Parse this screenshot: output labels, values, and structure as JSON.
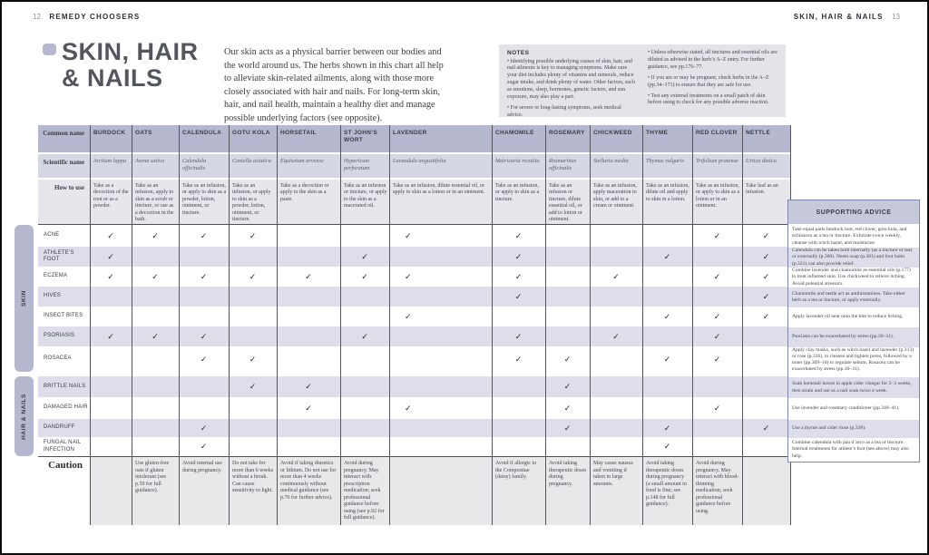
{
  "page": {
    "left_page_number": "12",
    "left_header": "REMEDY CHOOSERS",
    "right_header": "SKIN, HAIR & NAILS",
    "right_page_number": "13"
  },
  "title": {
    "line1": "SKIN, HAIR",
    "line2": "& NAILS"
  },
  "intro": "Our skin acts as a physical barrier between our bodies and the world around us. The herbs shown in this chart all help to alleviate skin-related ailments, along with those more closely associated with hair and nails. For long-term skin, hair, and nail health, maintain a healthy diet and manage possible underlying factors (see opposite).",
  "notes": {
    "heading": "NOTES",
    "col1": [
      "Identifying possible underlying causes of skin, hair, and nail ailments is key to managing symptoms. Make sure your diet includes plenty of vitamins and minerals, reduce sugar intake, and drink plenty of water. Other factors, such as emotions, sleep, hormones, genetic factors, and sun exposure, may also play a part.",
      "For severe or long-lasting symptoms, seek medical advice."
    ],
    "col2": [
      "Unless otherwise stated, all tinctures and essential oils are diluted as advised in the herb’s A–Z entry. For further guidance, see pp.176–77.",
      "If you are or may be pregnant, check herbs in the A–Z (pp.34–171) to ensure that they are safe for use.",
      "Test any external treatments on a small patch of skin before using to check for any possible adverse reaction."
    ]
  },
  "advice_panel": {
    "heading": "SUPPORTING ADVICE"
  },
  "table": {
    "row_labels": {
      "common": "Common name",
      "scientific": "Scientific name",
      "how_to_use": "How to use",
      "caution": "Caution"
    },
    "herbs": [
      {
        "id": "burdock",
        "name": "BURDOCK",
        "scientific": "Arctium lappa",
        "how_to_use": "Take as a decoction of the root or as a powder.",
        "caution": ""
      },
      {
        "id": "oats",
        "name": "OATS",
        "scientific": "Avena sativa",
        "how_to_use": "Take as an infusion, apply to skin as a scrub or tincture, or use as a decoction in the bath.",
        "caution": "Use gluten-free oats if gluten intolerant (see p.59 for full guidance)."
      },
      {
        "id": "calendula",
        "name": "CALENDULA",
        "scientific": "Calendula officinalis",
        "how_to_use": "Take as an infusion, or apply to skin as a powder, lotion, ointment, or tincture.",
        "caution": "Avoid internal use during pregnancy."
      },
      {
        "id": "gotu-kola",
        "name": "GOTU KOLA",
        "scientific": "Centella asiatica",
        "how_to_use": "Take as an infusion, or apply to skin as a powder, lotion, ointment, or tincture.",
        "caution": "Do not take for more than 6 weeks without a break. Can cause sensitivity to light."
      },
      {
        "id": "horsetail",
        "name": "HORSETAIL",
        "scientific": "Equisetum arvense",
        "how_to_use": "Take as a decoction or apply to the skin as a paste.",
        "caution": "Avoid if taking diuretics or lithium. Do not use for more than 4 weeks continuously without medical guidance (see p.76 for further advice)."
      },
      {
        "id": "st-johns-wort",
        "name": "ST JOHN’S WORT",
        "scientific": "Hypericum perforatum",
        "how_to_use": "Take as an infusion or tincture, or apply to the skin as a macerated oil.",
        "caution": "Avoid during pregnancy. May interact with prescription medication; seek professional guidance before using (see p.92 for full guidance)."
      },
      {
        "id": "lavender",
        "name": "LAVENDER",
        "scientific": "Lavandula angustifolia",
        "how_to_use": "Take as an infusion, dilute essential oil, or apply to skin as a lotion or in an ointment.",
        "caution": ""
      },
      {
        "id": "chamomile",
        "name": "CHAMOMILE",
        "scientific": "Matricaria recutita",
        "how_to_use": "Take as an infusion, or apply to skin as a tincture.",
        "caution": "Avoid if allergic to the Compositae (daisy) family."
      },
      {
        "id": "rosemary",
        "name": "ROSEMARY",
        "scientific": "Rosmarinus officinalis",
        "how_to_use": "Take as an infusion or tincture, dilute essential oil, or add to lotion or ointment.",
        "caution": "Avoid taking therapeutic doses during pregnancy."
      },
      {
        "id": "chickweed",
        "name": "CHICKWEED",
        "scientific": "Stellaria media",
        "how_to_use": "Take as an infusion, apply maceration to skin, or add to a cream or ointment.",
        "caution": "May cause nausea and vomiting if taken in large amounts."
      },
      {
        "id": "thyme",
        "name": "THYME",
        "scientific": "Thymus vulgaris",
        "how_to_use": "Take as an infusion, dilute oil and apply to skin in a lotion.",
        "caution": "Avoid taking therapeutic doses during pregnancy (a small amount in food is fine; see p.148 for full guidance)."
      },
      {
        "id": "red-clover",
        "name": "RED CLOVER",
        "scientific": "Trifolium pratense",
        "how_to_use": "Take as an infusion, or apply to skin as a lotion or in an ointment.",
        "caution": "Avoid during pregnancy. May interact with blood-thinning medication; seek professional guidance before using."
      },
      {
        "id": "nettle",
        "name": "NETTLE",
        "scientific": "Urtica dioica",
        "how_to_use": "Take leaf as an infusion.",
        "caution": ""
      }
    ],
    "groups": [
      {
        "label": "SKIN"
      },
      {
        "label": "HAIR & NAILS"
      }
    ],
    "ailments": [
      {
        "group": 0,
        "name": "ACNE",
        "checks": [
          "burdock",
          "oats",
          "calendula",
          "gotu-kola",
          "lavender",
          "chamomile",
          "red-clover",
          "nettle"
        ],
        "advice": "Take equal parts burdock root, red clover, gotu kola, and echinacea as a tea or tincture. Exfoliate twice weekly, cleanse with witch hazel, and moisturize."
      },
      {
        "group": 0,
        "name": "ATHLETE’S FOOT",
        "checks": [
          "burdock",
          "st-johns-wort",
          "chamomile",
          "thyme",
          "nettle"
        ],
        "advice": "Calendula can be taken both internally (as a tincture or tea) or externally (p.300). Neem soap (p.301) and foot balm (p.321) can also provide relief."
      },
      {
        "group": 0,
        "name": "ECZEMA",
        "checks": [
          "burdock",
          "oats",
          "calendula",
          "gotu-kola",
          "horsetail",
          "st-johns-wort",
          "lavender",
          "chamomile",
          "chickweed",
          "red-clover",
          "nettle"
        ],
        "advice": "Combine lavender and chamomile as essential oils (p.177) to treat inflamed skin. Use chickweed to relieve itching. Avoid potential stressors."
      },
      {
        "group": 0,
        "name": "HIVES",
        "checks": [
          "chamomile",
          "nettle"
        ],
        "advice": "Chamomile and nettle act as antihistamines. Take either herb as a tea or tincture, or apply externally."
      },
      {
        "group": 0,
        "name": "INSECT BITES",
        "checks": [
          "lavender",
          "thyme",
          "red-clover",
          "nettle"
        ],
        "advice": "Apply lavender oil neat onto the bite to reduce itching."
      },
      {
        "group": 0,
        "name": "PSORIASIS",
        "checks": [
          "burdock",
          "oats",
          "calendula",
          "st-johns-wort",
          "chamomile",
          "chickweed",
          "red-clover"
        ],
        "advice": "Psoriasis can be exacerbated by stress (pp.30–31)."
      },
      {
        "group": 0,
        "name": "ROSACEA",
        "checks": [
          "calendula",
          "gotu-kola",
          "chamomile",
          "rosemary",
          "thyme",
          "red-clover"
        ],
        "advice": "Apply clay masks, such as witch hazel and lavender (p.313) or rose (p.316), to cleanse and tighten pores, followed by a toner (pp.309–10) to regulate sebum. Rosacea can be exacerbated by stress (pp.30–31)."
      },
      {
        "group": 1,
        "name": "BRITTLE NAILS",
        "checks": [
          "gotu-kola",
          "horsetail",
          "rosemary"
        ],
        "advice": "Soak horsetail leaves in apple cider vinegar for 2–3 weeks, then strain and use as a nail soak twice a week."
      },
      {
        "group": 1,
        "name": "DAMAGED HAIR",
        "checks": [
          "horsetail",
          "lavender",
          "rosemary",
          "red-clover"
        ],
        "advice": "Use lavender and rosemary conditioner (pp.340–41)."
      },
      {
        "group": 1,
        "name": "DANDRUFF",
        "checks": [
          "calendula",
          "rosemary",
          "thyme",
          "nettle"
        ],
        "advice": "Use a thyme and cider rinse (p.338)."
      },
      {
        "group": 1,
        "name": "FUNGAL NAIL INFECTION",
        "checks": [
          "calendula",
          "thyme"
        ],
        "advice": "Combine calendula with pau d’arco as a tea or tincture. Internal treatments for athlete’s foot (see above) may also help."
      }
    ]
  },
  "icons": {
    "check": "✓",
    "title_bullet": "rounded-square"
  },
  "colors": {
    "accent_lavender": "#b5b8cf",
    "band_scientific": "#d5d7e4",
    "band_how_to_use": "#e6e6ed",
    "row_stripe": "#dddeea",
    "advice_header": "#c6c9d9",
    "notes_background": "#e3e3ea",
    "caution_background": "#e8e8ea",
    "line": "#55555c",
    "text_dark": "#3a3c45"
  }
}
